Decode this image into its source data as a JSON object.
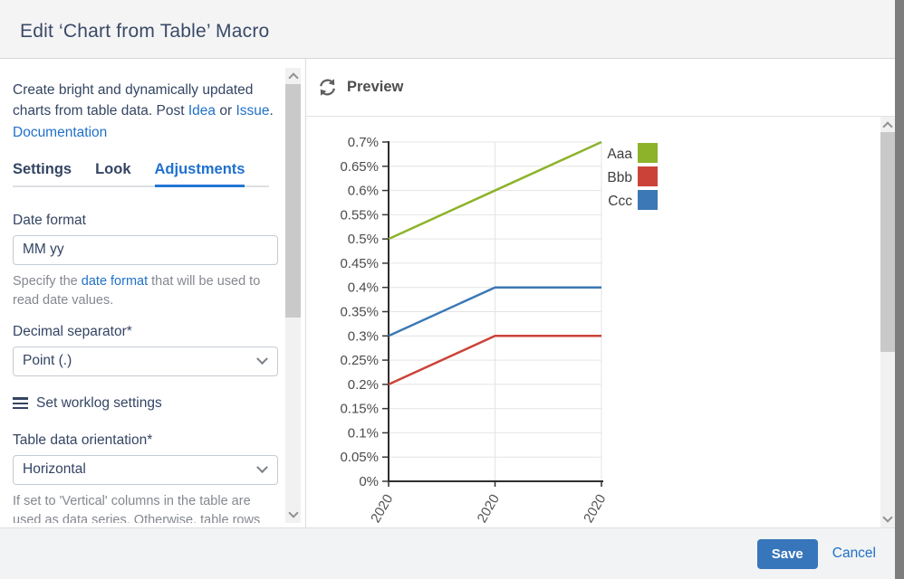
{
  "dialog": {
    "title": "Edit ‘Chart from Table’ Macro"
  },
  "sidebar": {
    "description": "Create bright and dynamically updated charts from table data.",
    "post_text": "Post",
    "link_idea": "Idea",
    "or_text": "or",
    "link_issue": "Issue",
    "period_text": ".",
    "link_documentation": "Documentation",
    "tabs": [
      {
        "label": "Settings"
      },
      {
        "label": "Look"
      },
      {
        "label": "Adjustments"
      }
    ],
    "date_format": {
      "label": "Date format",
      "value": "MM yy",
      "help_prefix": "Specify the",
      "help_link": "date format",
      "help_suffix": "that will be used to read date values."
    },
    "decimal_separator": {
      "label": "Decimal separator*",
      "value": "Point (.)"
    },
    "worklog_label": "Set worklog settings",
    "orientation": {
      "label": "Table data orientation*",
      "value": "Horizontal",
      "help": "If set to 'Vertical' columns in the table are used as data series. Otherwise, table rows"
    }
  },
  "preview": {
    "title": "Preview"
  },
  "footer": {
    "save_label": "Save",
    "cancel_label": "Cancel"
  },
  "icons": {
    "refresh": "circular-arrows",
    "hamburger": "three-bars",
    "select_chevron": "chevron-down",
    "scrollbar_up": "chevron-up",
    "scrollbar_down": "chevron-down"
  },
  "colors": {
    "accent_blue": "#2071c7",
    "save_button": "#3876bb",
    "series_aaa": "#8db32a",
    "series_bbb": "#cb4338",
    "series_ccc": "#3b78b5"
  },
  "chart_data": {
    "type": "line",
    "x_labels": [
      "2020",
      "2020",
      "2020"
    ],
    "series": [
      {
        "name": "Aaa",
        "color": "#8db32a",
        "values": [
          0.5,
          0.6,
          0.7
        ]
      },
      {
        "name": "Bbb",
        "color": "#cb4338",
        "values": [
          0.2,
          0.3,
          0.3
        ]
      },
      {
        "name": "Ccc",
        "color": "#3b78b5",
        "values": [
          0.3,
          0.4,
          0.4
        ]
      }
    ],
    "unit": "%",
    "ylim": [
      0,
      0.7
    ],
    "ytick_step": 0.05,
    "ytick_labels": [
      "0%",
      "0.05%",
      "0.1%",
      "0.15%",
      "0.2%",
      "0.25%",
      "0.3%",
      "0.35%",
      "0.4%",
      "0.45%",
      "0.5%",
      "0.55%",
      "0.6%",
      "0.65%",
      "0.7%"
    ],
    "legend_position": "top-right",
    "grid": true
  }
}
